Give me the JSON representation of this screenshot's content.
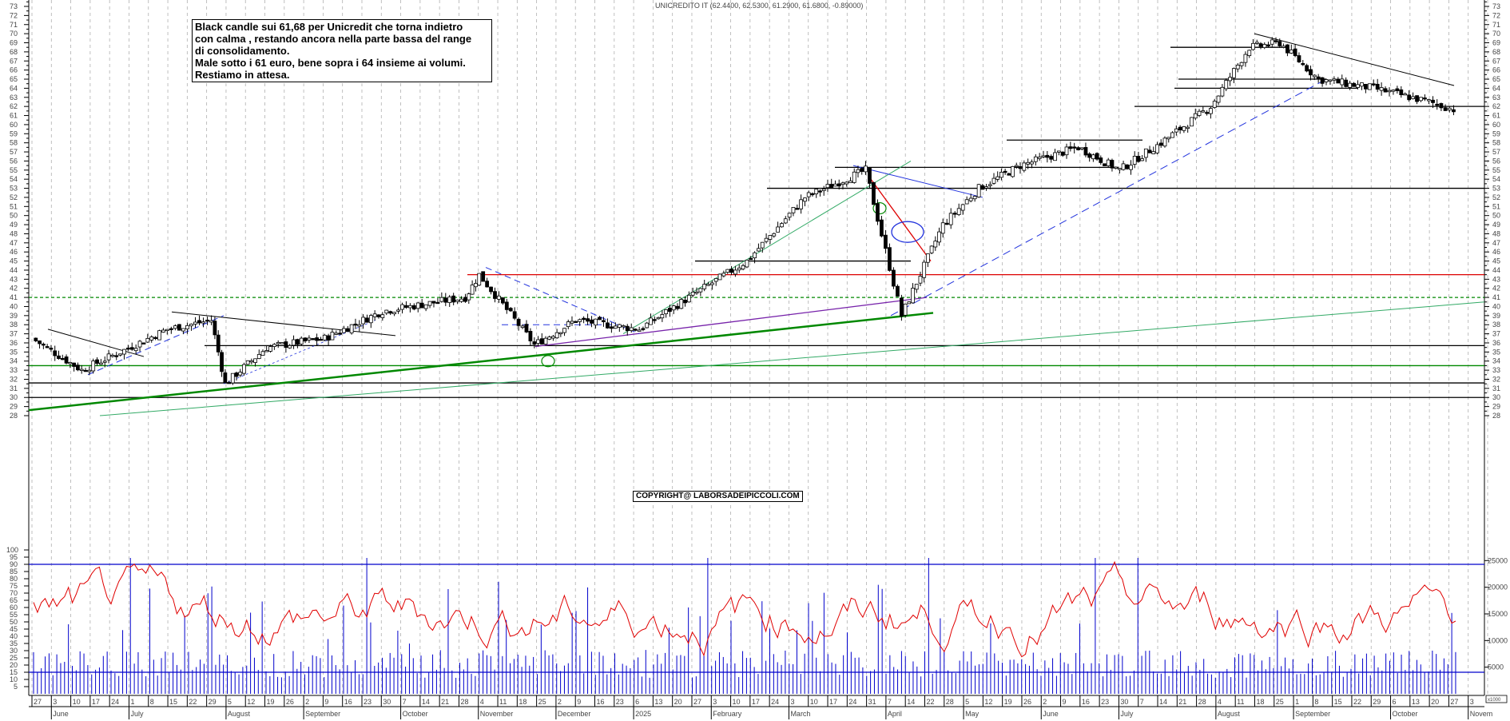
{
  "header": {
    "title": "UNICREDITO IT (62.4400, 62.5300, 61.2900, 61.6800, -0.89000)"
  },
  "annotation": {
    "lines": [
      "Black candle sui 61,68 per Unicredit che torna indietro",
      "con calma , restando ancora nella parte bassa del range",
      "di consolidamento.",
      "Male sotto i 61 euro, bene sopra i 64 insieme ai volumi.",
      "Restiamo in attesa."
    ]
  },
  "copyright": "COPYRIGHT@ LABORSADEIPICCOLI.COM",
  "colors": {
    "candle": "#000000",
    "rsi": "#e00000",
    "volume": "#0000cc",
    "support_green": "#008800",
    "resistance_red": "#dd0000",
    "trend_blue": "#2233dd",
    "trend_purple": "#7722aa",
    "grid": "#b0b0b0"
  },
  "chart_data": [
    {
      "type": "candlestick",
      "title": "UNICREDITO IT (62.4400, 62.5300, 61.2900, 61.6800, -0.89000)",
      "last": {
        "open": 62.44,
        "high": 62.53,
        "low": 61.29,
        "close": 61.68,
        "change": -0.89
      },
      "ylim": [
        28,
        73
      ],
      "y_ticks": [
        28,
        29,
        30,
        31,
        32,
        33,
        34,
        35,
        36,
        37,
        38,
        39,
        40,
        41,
        42,
        43,
        44,
        45,
        46,
        47,
        48,
        49,
        50,
        51,
        52,
        53,
        54,
        55,
        56,
        57,
        58,
        59,
        60,
        61,
        62,
        63,
        64,
        65,
        66,
        67,
        68,
        69,
        70,
        71,
        72,
        73
      ],
      "x_ticks": [
        "27",
        "3",
        "10",
        "17",
        "24",
        "1",
        "8",
        "15",
        "22",
        "29",
        "5",
        "12",
        "19",
        "26",
        "2",
        "9",
        "16",
        "23",
        "30",
        "7",
        "14",
        "21",
        "28",
        "4",
        "11",
        "18",
        "25",
        "2",
        "9",
        "16",
        "23",
        "6",
        "13",
        "20",
        "27",
        "3",
        "10",
        "17",
        "24",
        "3",
        "10",
        "17",
        "24",
        "31",
        "7",
        "14",
        "22",
        "28",
        "5",
        "12",
        "19",
        "26",
        "2",
        "9",
        "16",
        "23",
        "30",
        "7",
        "14",
        "21",
        "28",
        "4",
        "11",
        "18",
        "25",
        "1",
        "8",
        "15",
        "22",
        "29",
        "6",
        "13",
        "20",
        "27",
        "3"
      ],
      "x_months": [
        "June",
        "July",
        "August",
        "September",
        "October",
        "November",
        "December",
        "2025",
        "February",
        "March",
        "April",
        "May",
        "June",
        "July",
        "August",
        "September",
        "October",
        "Novem"
      ],
      "approx_close_path": [
        {
          "date": "2024-05-27",
          "close": 36.5
        },
        {
          "date": "2024-06-14",
          "close": 33.0
        },
        {
          "date": "2024-06-28",
          "close": 35.0
        },
        {
          "date": "2024-07-15",
          "close": 37.5
        },
        {
          "date": "2024-07-31",
          "close": 38.5
        },
        {
          "date": "2024-08-05",
          "close": 31.5
        },
        {
          "date": "2024-08-20",
          "close": 35.5
        },
        {
          "date": "2024-09-10",
          "close": 36.5
        },
        {
          "date": "2024-10-01",
          "close": 39.5
        },
        {
          "date": "2024-10-31",
          "close": 41.0
        },
        {
          "date": "2024-11-05",
          "close": 43.5
        },
        {
          "date": "2024-11-25",
          "close": 35.8
        },
        {
          "date": "2024-12-10",
          "close": 38.5
        },
        {
          "date": "2025-01-02",
          "close": 37.5
        },
        {
          "date": "2025-01-20",
          "close": 41.0
        },
        {
          "date": "2025-02-10",
          "close": 45.0
        },
        {
          "date": "2025-03-03",
          "close": 52.0
        },
        {
          "date": "2025-03-25",
          "close": 55.0
        },
        {
          "date": "2025-04-07",
          "close": 39.0
        },
        {
          "date": "2025-04-22",
          "close": 49.0
        },
        {
          "date": "2025-05-05",
          "close": 53.0
        },
        {
          "date": "2025-05-20",
          "close": 55.5
        },
        {
          "date": "2025-06-10",
          "close": 57.5
        },
        {
          "date": "2025-06-25",
          "close": 55.0
        },
        {
          "date": "2025-07-10",
          "close": 58.0
        },
        {
          "date": "2025-07-28",
          "close": 62.0
        },
        {
          "date": "2025-08-11",
          "close": 68.5
        },
        {
          "date": "2025-08-22",
          "close": 69.0
        },
        {
          "date": "2025-09-05",
          "close": 65.0
        },
        {
          "date": "2025-09-25",
          "close": 64.0
        },
        {
          "date": "2025-10-15",
          "close": 62.5
        },
        {
          "date": "2025-10-24",
          "close": 61.68
        }
      ],
      "horizontal_levels": [
        {
          "value": 62.0,
          "color": "black"
        },
        {
          "value": 64.0,
          "color": "black"
        },
        {
          "value": 65.0,
          "color": "black"
        },
        {
          "value": 68.5,
          "color": "black"
        },
        {
          "value": 53.0,
          "color": "black"
        },
        {
          "value": 55.3,
          "color": "black"
        },
        {
          "value": 58.3,
          "color": "black"
        },
        {
          "value": 45.0,
          "color": "black"
        },
        {
          "value": 43.5,
          "color": "red"
        },
        {
          "value": 41.0,
          "color": "green-dashed"
        },
        {
          "value": 35.7,
          "color": "black"
        },
        {
          "value": 33.5,
          "color": "green"
        },
        {
          "value": 31.6,
          "color": "black"
        },
        {
          "value": 30.0,
          "color": "black"
        }
      ]
    },
    {
      "type": "line",
      "name": "RSI",
      "ylim": [
        0,
        100
      ],
      "y_ticks": [
        5,
        10,
        15,
        20,
        25,
        30,
        35,
        40,
        45,
        50,
        55,
        60,
        65,
        70,
        75,
        80,
        85,
        90,
        95,
        100
      ],
      "levels": [
        90,
        15
      ]
    },
    {
      "type": "bar",
      "name": "Volume",
      "unit": "x1000",
      "y_ticks_right": [
        5000,
        10000,
        15000,
        20000,
        25000
      ]
    }
  ]
}
